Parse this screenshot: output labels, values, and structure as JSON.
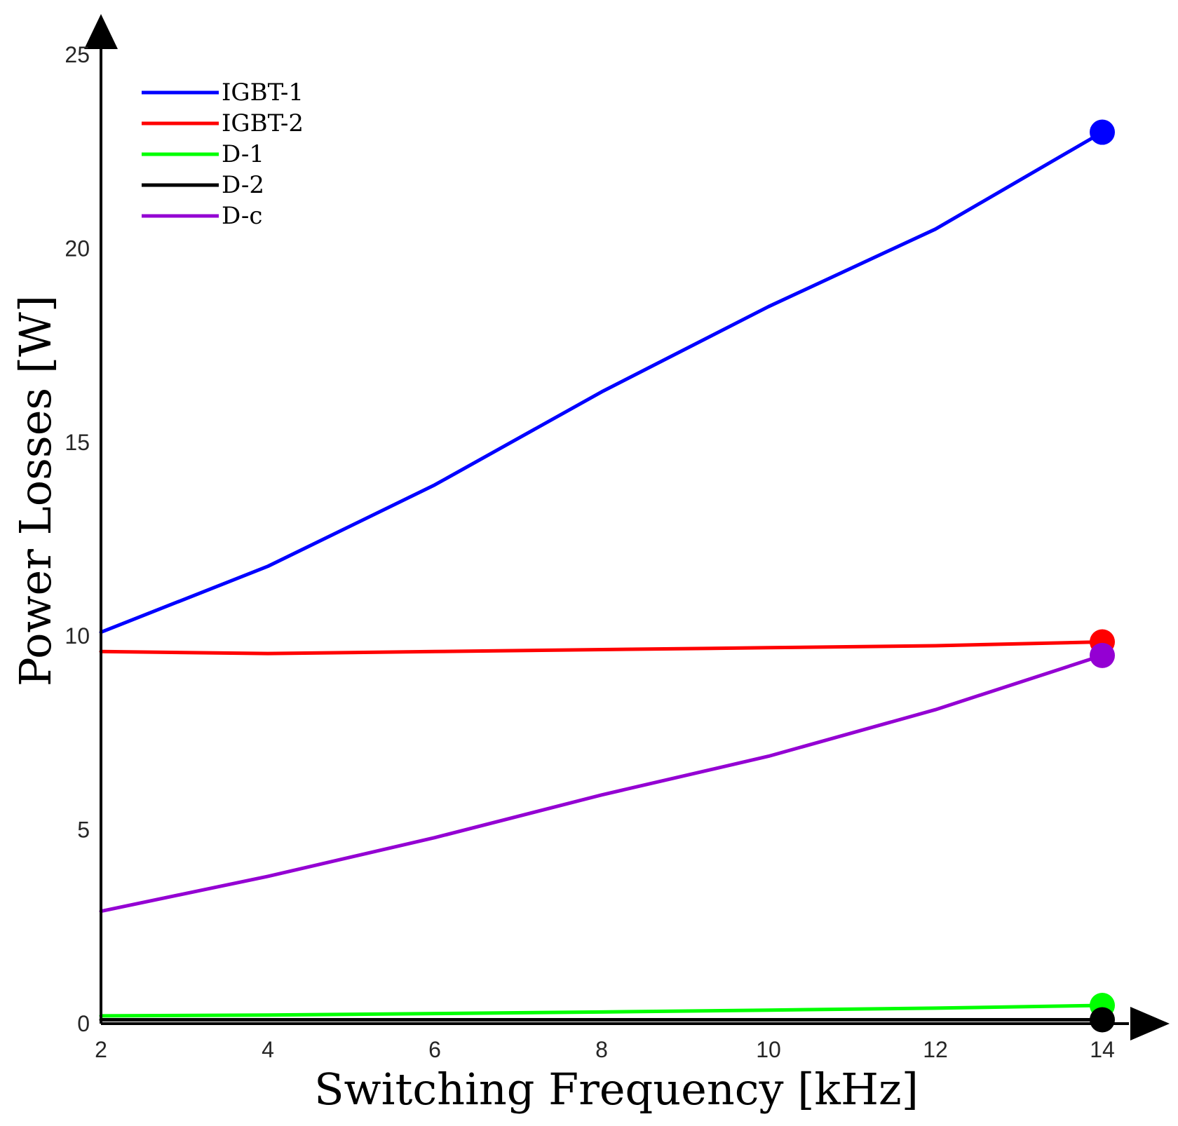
{
  "chart_data": {
    "type": "line",
    "title": "",
    "xlabel": "Switching Frequency [kHz]",
    "ylabel": "Power Losses [W]",
    "xlim": [
      2,
      14
    ],
    "ylim": [
      0,
      25
    ],
    "xticks": [
      2,
      4,
      6,
      8,
      10,
      12,
      14
    ],
    "yticks": [
      0,
      5,
      10,
      15,
      20,
      25
    ],
    "x": [
      2,
      4,
      6,
      8,
      10,
      12,
      14
    ],
    "grid": false,
    "legend_position": "top-left",
    "series": [
      {
        "name": "IGBT-1",
        "color": "#0000ff",
        "values": [
          10.1,
          11.8,
          13.9,
          16.3,
          18.5,
          20.5,
          23.0
        ]
      },
      {
        "name": "IGBT-2",
        "color": "#ff0000",
        "values": [
          9.6,
          9.55,
          9.6,
          9.65,
          9.7,
          9.75,
          9.85
        ]
      },
      {
        "name": "D-1",
        "color": "#00ff00",
        "values": [
          0.2,
          0.22,
          0.26,
          0.3,
          0.35,
          0.4,
          0.47
        ]
      },
      {
        "name": "D-2",
        "color": "#000000",
        "values": [
          0.1,
          0.1,
          0.1,
          0.1,
          0.1,
          0.1,
          0.1
        ]
      },
      {
        "name": "D-c",
        "color": "#9400d3",
        "values": [
          2.9,
          3.8,
          4.8,
          5.9,
          6.9,
          8.1,
          9.5
        ]
      }
    ],
    "end_markers": [
      {
        "series": "IGBT-1",
        "x": 14,
        "y": 23.0
      },
      {
        "series": "IGBT-2",
        "x": 14,
        "y": 9.85
      },
      {
        "series": "D-c",
        "x": 14,
        "y": 9.5
      },
      {
        "series": "D-1",
        "x": 14,
        "y": 0.47
      },
      {
        "series": "D-2",
        "x": 14,
        "y": 0.1
      }
    ]
  }
}
